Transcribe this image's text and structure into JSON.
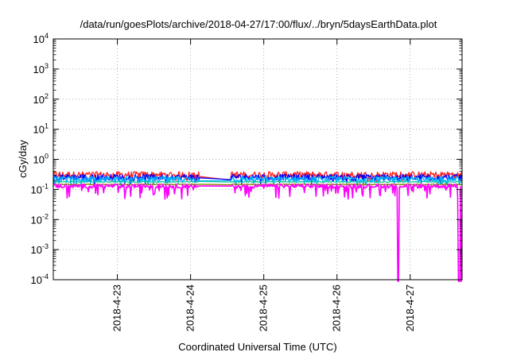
{
  "chart_data": {
    "type": "line",
    "title": "/data/run/goesPlots/archive/2018-04-27/17:00/flux/../bryn/5daysEarthData.plot",
    "xlabel": "Coordinated Universal Time (UTC)",
    "ylabel": "cGy/day",
    "yscale": "log",
    "ylim": [
      0.0001,
      10000
    ],
    "xlim": [
      "2018-04-22T03:00",
      "2018-04-27T17:00"
    ],
    "grid": true,
    "legend": "none",
    "y_ticks": [
      {
        "base": "10",
        "exp": "-4"
      },
      {
        "base": "10",
        "exp": "-3"
      },
      {
        "base": "10",
        "exp": "-2"
      },
      {
        "base": "10",
        "exp": "-1"
      },
      {
        "base": "10",
        "exp": "0"
      },
      {
        "base": "10",
        "exp": "1"
      },
      {
        "base": "10",
        "exp": "2"
      },
      {
        "base": "10",
        "exp": "3"
      },
      {
        "base": "10",
        "exp": "4"
      }
    ],
    "x_ticks": [
      {
        "label": "2018-4-23",
        "time": "2018-04-23T00:00"
      },
      {
        "label": "2018-4-24",
        "time": "2018-04-24T00:00"
      },
      {
        "label": "2018-4-25",
        "time": "2018-04-25T00:00"
      },
      {
        "label": "2018-4-26",
        "time": "2018-04-26T00:00"
      },
      {
        "label": "2018-4-27",
        "time": "2018-04-27T00:00"
      }
    ],
    "data_gap": [
      "2018-04-24T03:00",
      "2018-04-24T13:00"
    ],
    "drops_below_axis": [
      "2018-04-26T20:00",
      "2018-04-27T16:00",
      "2018-04-27T17:00"
    ],
    "series": [
      {
        "color": "#ff2020",
        "base": 0.28,
        "spread": 0.25
      },
      {
        "color": "#0000ff",
        "base": 0.24,
        "spread": 0.22
      },
      {
        "color": "#00b4ff",
        "base": 0.21,
        "spread": 0.2
      },
      {
        "color": "#10c8a0",
        "base": 0.18,
        "spread": 0.08
      },
      {
        "color": "#808000",
        "base": 0.15,
        "spread": 0.06
      },
      {
        "color": "#ff00ff",
        "base": 0.13,
        "spread": 0.35
      }
    ]
  }
}
